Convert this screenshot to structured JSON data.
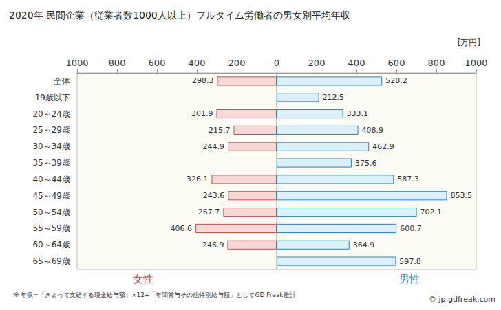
{
  "chart_data": {
    "type": "bar",
    "title": "2020年 民間企業（従業者数1000人以上）フルタイム労働者の男女別平均年収",
    "x_label": "[万円]",
    "orientation": "horizontal",
    "data_labels": true,
    "grid": false,
    "categories": [
      "全体",
      "19歳以下",
      "20～24歳",
      "25～29歳",
      "30～34歳",
      "35～39歳",
      "40～44歳",
      "45～49歳",
      "50～54歳",
      "55～59歳",
      "60～64歳",
      "65～69歳"
    ],
    "xlim": [
      0,
      1000
    ],
    "xticks": [
      0,
      200,
      400,
      600,
      800,
      1000
    ],
    "series": [
      {
        "name": "女性",
        "color": "#f8d7d7",
        "values": [
          298.3,
          null,
          301.9,
          215.7,
          244.9,
          null,
          326.1,
          243.6,
          267.7,
          406.6,
          246.9,
          null
        ]
      },
      {
        "name": "男性",
        "color": "#dcf0fa",
        "values": [
          528.2,
          212.5,
          333.1,
          408.9,
          462.9,
          375.6,
          587.3,
          853.5,
          702.1,
          600.7,
          364.9,
          597.8
        ]
      }
    ],
    "annotations": [
      "※ 年収=「きまって支給する現金給与額」×12+「年間賞与その他特別給与額」としてGD Freak推計",
      "© jp.gdfreak.com"
    ]
  }
}
